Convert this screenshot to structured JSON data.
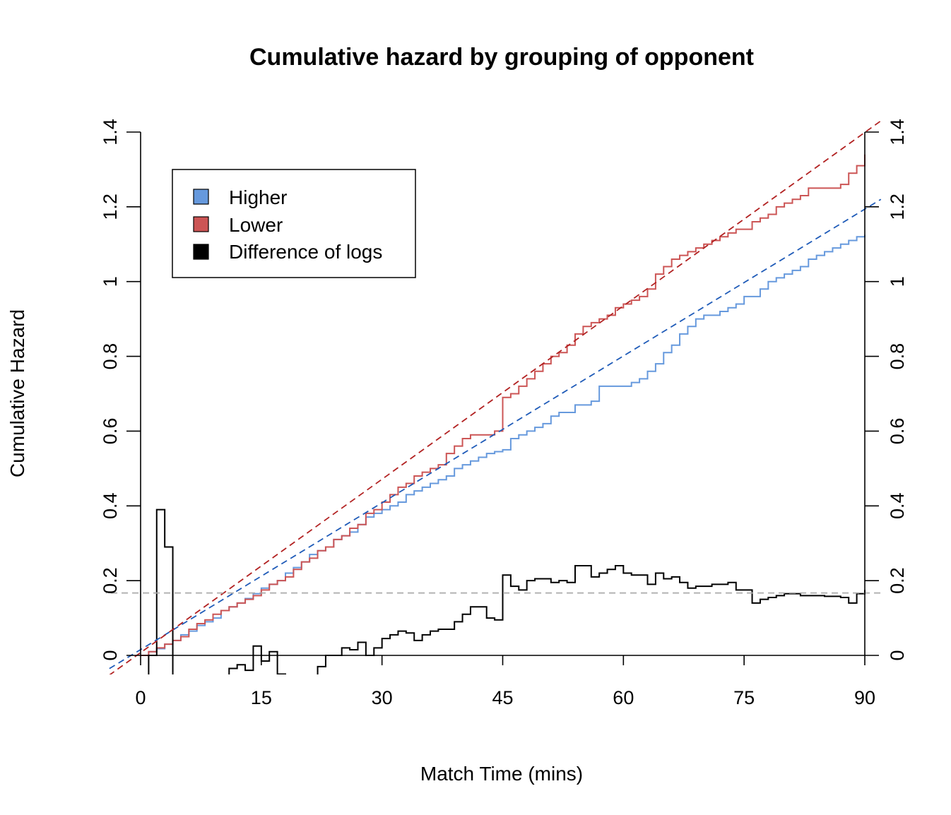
{
  "chart_data": {
    "type": "line",
    "title": "Cumulative hazard by grouping of opponent",
    "xlabel": "Match Time (mins)",
    "ylabel": "Cumulative Hazard",
    "xlim": [
      0,
      90
    ],
    "ylim": [
      0,
      1.4
    ],
    "x_ticks": [
      0,
      15,
      30,
      45,
      60,
      75,
      90
    ],
    "x_tick_labels": [
      "0",
      "15",
      "30",
      "45",
      "60",
      "75",
      "90"
    ],
    "y_ticks": [
      0,
      0.2,
      0.4,
      0.6,
      0.8,
      1.0,
      1.2,
      1.4
    ],
    "y_tick_labels": [
      "0",
      "0.2",
      "0.4",
      "0.6",
      "0.8",
      "1",
      "1.2",
      "1.4"
    ],
    "right_axis": "duplicate of left axis",
    "legend": {
      "position": "top-left",
      "entries": [
        {
          "label": "Higher",
          "color": "#6699dd"
        },
        {
          "label": "Lower",
          "color": "#cc5555"
        },
        {
          "label": "Difference of logs",
          "color": "#000000"
        }
      ]
    },
    "series": [
      {
        "name": "Higher",
        "style": "step",
        "color": "#6699dd",
        "x": [
          0,
          1,
          2,
          3,
          4,
          5,
          6,
          7,
          8,
          9,
          10,
          11,
          12,
          13,
          14,
          15,
          16,
          17,
          18,
          19,
          20,
          21,
          22,
          23,
          24,
          25,
          26,
          27,
          28,
          29,
          30,
          31,
          32,
          33,
          34,
          35,
          36,
          37,
          38,
          39,
          40,
          41,
          42,
          43,
          44,
          45,
          46,
          47,
          48,
          49,
          50,
          51,
          52,
          53,
          54,
          55,
          56,
          57,
          58,
          59,
          60,
          61,
          62,
          63,
          64,
          65,
          66,
          67,
          68,
          69,
          70,
          71,
          72,
          73,
          74,
          75,
          76,
          77,
          78,
          79,
          80,
          81,
          82,
          83,
          84,
          85,
          86,
          87,
          88,
          89,
          90
        ],
        "y": [
          0,
          0.01,
          0.018,
          0.03,
          0.04,
          0.055,
          0.065,
          0.08,
          0.09,
          0.1,
          0.12,
          0.13,
          0.14,
          0.152,
          0.165,
          0.18,
          0.19,
          0.2,
          0.22,
          0.235,
          0.25,
          0.27,
          0.28,
          0.29,
          0.31,
          0.32,
          0.33,
          0.35,
          0.37,
          0.38,
          0.39,
          0.4,
          0.41,
          0.43,
          0.44,
          0.45,
          0.46,
          0.47,
          0.48,
          0.5,
          0.51,
          0.52,
          0.53,
          0.54,
          0.545,
          0.55,
          0.58,
          0.59,
          0.6,
          0.61,
          0.62,
          0.64,
          0.65,
          0.65,
          0.67,
          0.67,
          0.68,
          0.72,
          0.72,
          0.72,
          0.72,
          0.73,
          0.74,
          0.76,
          0.78,
          0.81,
          0.83,
          0.86,
          0.88,
          0.9,
          0.91,
          0.91,
          0.92,
          0.93,
          0.94,
          0.96,
          0.96,
          0.98,
          1.0,
          1.01,
          1.02,
          1.03,
          1.04,
          1.06,
          1.07,
          1.08,
          1.09,
          1.1,
          1.11,
          1.12,
          1.125
        ]
      },
      {
        "name": "Lower",
        "style": "step",
        "color": "#cc5555",
        "x": [
          0,
          1,
          2,
          3,
          4,
          5,
          6,
          7,
          8,
          9,
          10,
          11,
          12,
          13,
          14,
          15,
          16,
          17,
          18,
          19,
          20,
          21,
          22,
          23,
          24,
          25,
          26,
          27,
          28,
          29,
          30,
          31,
          32,
          33,
          34,
          35,
          36,
          37,
          38,
          39,
          40,
          41,
          42,
          43,
          44,
          45,
          46,
          47,
          48,
          49,
          50,
          51,
          52,
          53,
          54,
          55,
          56,
          57,
          58,
          59,
          60,
          61,
          62,
          63,
          64,
          65,
          66,
          67,
          68,
          69,
          70,
          71,
          72,
          73,
          74,
          75,
          76,
          77,
          78,
          79,
          80,
          81,
          82,
          83,
          84,
          85,
          86,
          87,
          88,
          89,
          90
        ],
        "y": [
          0,
          0.01,
          0.02,
          0.03,
          0.04,
          0.05,
          0.07,
          0.085,
          0.095,
          0.11,
          0.12,
          0.13,
          0.14,
          0.15,
          0.16,
          0.175,
          0.19,
          0.2,
          0.21,
          0.23,
          0.25,
          0.26,
          0.28,
          0.29,
          0.31,
          0.32,
          0.34,
          0.35,
          0.38,
          0.39,
          0.41,
          0.43,
          0.45,
          0.46,
          0.48,
          0.49,
          0.5,
          0.51,
          0.54,
          0.56,
          0.58,
          0.59,
          0.59,
          0.59,
          0.6,
          0.69,
          0.7,
          0.72,
          0.74,
          0.76,
          0.78,
          0.8,
          0.81,
          0.83,
          0.86,
          0.88,
          0.89,
          0.9,
          0.91,
          0.93,
          0.94,
          0.95,
          0.96,
          0.98,
          1.02,
          1.04,
          1.06,
          1.07,
          1.08,
          1.09,
          1.1,
          1.11,
          1.12,
          1.13,
          1.14,
          1.14,
          1.16,
          1.17,
          1.18,
          1.2,
          1.21,
          1.22,
          1.23,
          1.25,
          1.25,
          1.25,
          1.25,
          1.26,
          1.29,
          1.31,
          1.34
        ]
      },
      {
        "name": "Difference of logs",
        "style": "step",
        "color": "#000000",
        "x": [
          0,
          1,
          2,
          3,
          4,
          5,
          6,
          7,
          8,
          9,
          10,
          11,
          12,
          13,
          14,
          15,
          16,
          17,
          18,
          19,
          20,
          21,
          22,
          23,
          24,
          25,
          26,
          27,
          28,
          29,
          30,
          31,
          32,
          33,
          34,
          35,
          36,
          37,
          38,
          39,
          40,
          41,
          42,
          43,
          44,
          45,
          46,
          47,
          48,
          49,
          50,
          51,
          52,
          53,
          54,
          55,
          56,
          57,
          58,
          59,
          60,
          61,
          62,
          63,
          64,
          65,
          66,
          67,
          68,
          69,
          70,
          71,
          72,
          73,
          74,
          75,
          76,
          77,
          78,
          79,
          80,
          81,
          82,
          83,
          84,
          85,
          86,
          87,
          88,
          89,
          90
        ],
        "y": [
          -0.3,
          0,
          0.39,
          0.29,
          -0.06,
          -0.06,
          -0.06,
          -0.06,
          -0.06,
          -0.06,
          -0.06,
          -0.035,
          -0.025,
          -0.04,
          0.025,
          -0.015,
          0.01,
          -0.05,
          -0.06,
          -0.06,
          -0.06,
          -0.06,
          -0.03,
          0.0,
          0.0,
          0.02,
          0.015,
          0.035,
          0.0,
          0.02,
          0.045,
          0.055,
          0.065,
          0.06,
          0.04,
          0.055,
          0.065,
          0.07,
          0.07,
          0.09,
          0.11,
          0.13,
          0.13,
          0.1,
          0.095,
          0.215,
          0.185,
          0.175,
          0.2,
          0.205,
          0.205,
          0.195,
          0.2,
          0.195,
          0.24,
          0.24,
          0.21,
          0.22,
          0.23,
          0.24,
          0.22,
          0.215,
          0.215,
          0.19,
          0.22,
          0.205,
          0.21,
          0.195,
          0.18,
          0.185,
          0.185,
          0.19,
          0.19,
          0.195,
          0.175,
          0.175,
          0.14,
          0.15,
          0.155,
          0.16,
          0.165,
          0.165,
          0.16,
          0.16,
          0.16,
          0.158,
          0.158,
          0.155,
          0.14,
          0.165,
          0.175
        ]
      },
      {
        "name": "",
        "style": "dashed",
        "color": "#1f5bb8",
        "x": [
          -5,
          92
        ],
        "y": [
          -0.05,
          1.22
        ]
      },
      {
        "name": "",
        "style": "dashed",
        "color": "#b22222",
        "x": [
          -5,
          92
        ],
        "y": [
          -0.07,
          1.43
        ]
      },
      {
        "name": "",
        "style": "dashed",
        "color": "#aaaaaa",
        "x": [
          -5,
          92
        ],
        "y": [
          0.167,
          0.167
        ]
      }
    ]
  }
}
